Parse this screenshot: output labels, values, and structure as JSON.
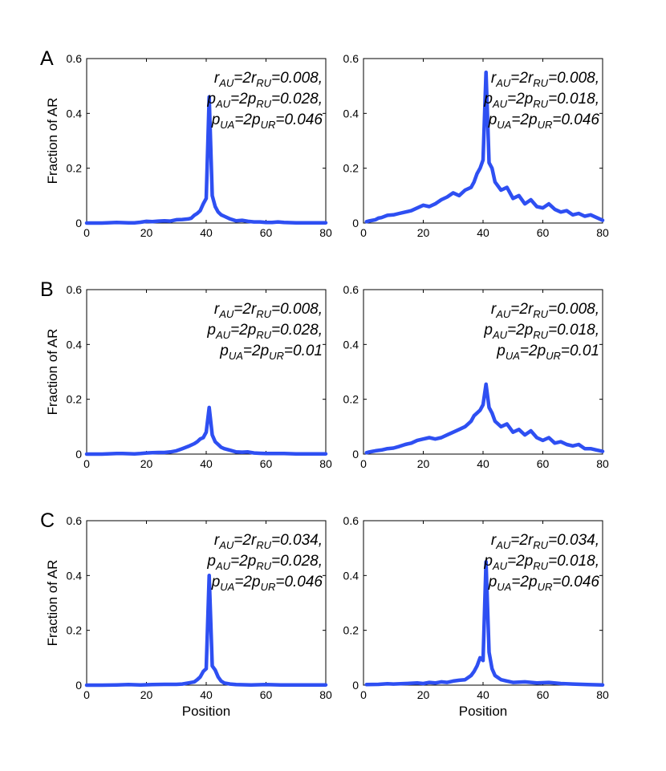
{
  "chart_data": [
    {
      "id": "A-left",
      "type": "line",
      "panel_label": "A",
      "ylabel": "Fraction of AR",
      "xlabel": "",
      "xlim": [
        0,
        80
      ],
      "ylim": [
        0,
        0.6
      ],
      "xticks": [
        0,
        20,
        40,
        60,
        80
      ],
      "yticks": [
        0,
        0.2,
        0.4,
        0.6
      ],
      "annotation": [
        [
          [
            "r",
            ""
          ],
          [
            "AU",
            "sub"
          ],
          [
            "=2r",
            ""
          ],
          [
            "RU",
            "sub"
          ],
          [
            "=0.008,",
            ""
          ]
        ],
        [
          [
            "p",
            ""
          ],
          [
            "AU",
            "sub"
          ],
          [
            "=2p",
            ""
          ],
          [
            "RU",
            "sub"
          ],
          [
            "=0.028,",
            ""
          ]
        ],
        [
          [
            "p",
            ""
          ],
          [
            "UA",
            "sub"
          ],
          [
            "=2p",
            ""
          ],
          [
            "UR",
            "sub"
          ],
          [
            "=0.046",
            ""
          ]
        ]
      ],
      "series": [
        {
          "name": "fraction",
          "x": [
            0,
            5,
            10,
            14,
            16,
            18,
            20,
            22,
            24,
            26,
            28,
            30,
            32,
            34,
            35,
            36,
            37,
            38,
            39,
            40,
            41,
            42,
            43,
            44,
            45,
            46,
            48,
            50,
            52,
            54,
            56,
            58,
            60,
            62,
            64,
            66,
            70,
            75,
            80
          ],
          "y": [
            0,
            0,
            0.002,
            0.001,
            0.001,
            0.003,
            0.006,
            0.005,
            0.007,
            0.008,
            0.007,
            0.012,
            0.013,
            0.015,
            0.018,
            0.028,
            0.035,
            0.045,
            0.07,
            0.09,
            0.46,
            0.1,
            0.06,
            0.04,
            0.03,
            0.025,
            0.015,
            0.008,
            0.01,
            0.006,
            0.004,
            0.004,
            0.002,
            0.002,
            0.004,
            0.002,
            0.001,
            0.001,
            0.001
          ]
        }
      ]
    },
    {
      "id": "A-right",
      "type": "line",
      "panel_label": "",
      "ylabel": "",
      "xlabel": "",
      "xlim": [
        0,
        80
      ],
      "ylim": [
        0,
        0.6
      ],
      "xticks": [
        0,
        20,
        40,
        60,
        80
      ],
      "yticks": [
        0,
        0.2,
        0.4,
        0.6
      ],
      "annotation": [
        [
          [
            "r",
            ""
          ],
          [
            "AU",
            "sub"
          ],
          [
            "=2r",
            ""
          ],
          [
            "RU",
            "sub"
          ],
          [
            "=0.008,",
            ""
          ]
        ],
        [
          [
            "p",
            ""
          ],
          [
            "AU",
            "sub"
          ],
          [
            "=2p",
            ""
          ],
          [
            "RU",
            "sub"
          ],
          [
            "=0.018,",
            ""
          ]
        ],
        [
          [
            "p",
            ""
          ],
          [
            "UA",
            "sub"
          ],
          [
            "=2p",
            ""
          ],
          [
            "UR",
            "sub"
          ],
          [
            "=0.046",
            ""
          ]
        ]
      ],
      "series": [
        {
          "name": "fraction",
          "x": [
            1,
            2,
            3,
            4,
            5,
            6,
            8,
            10,
            12,
            14,
            16,
            18,
            20,
            22,
            24,
            26,
            28,
            30,
            32,
            34,
            36,
            37,
            38,
            39,
            40,
            41,
            42,
            43,
            44,
            46,
            48,
            50,
            52,
            54,
            56,
            58,
            60,
            62,
            64,
            66,
            68,
            70,
            72,
            74,
            76,
            78,
            80
          ],
          "y": [
            0.005,
            0.008,
            0.01,
            0.012,
            0.018,
            0.02,
            0.028,
            0.03,
            0.035,
            0.04,
            0.045,
            0.055,
            0.065,
            0.06,
            0.07,
            0.085,
            0.095,
            0.11,
            0.1,
            0.12,
            0.13,
            0.15,
            0.18,
            0.2,
            0.23,
            0.55,
            0.22,
            0.2,
            0.15,
            0.12,
            0.13,
            0.09,
            0.1,
            0.07,
            0.085,
            0.06,
            0.055,
            0.07,
            0.05,
            0.04,
            0.045,
            0.03,
            0.035,
            0.025,
            0.03,
            0.02,
            0.01
          ]
        }
      ]
    },
    {
      "id": "B-left",
      "type": "line",
      "panel_label": "B",
      "ylabel": "Fraction of AR",
      "xlabel": "",
      "xlim": [
        0,
        80
      ],
      "ylim": [
        0,
        0.6
      ],
      "xticks": [
        0,
        20,
        40,
        60,
        80
      ],
      "yticks": [
        0,
        0.2,
        0.4,
        0.6
      ],
      "annotation": [
        [
          [
            "r",
            ""
          ],
          [
            "AU",
            "sub"
          ],
          [
            "=2r",
            ""
          ],
          [
            "RU",
            "sub"
          ],
          [
            "=0.008,",
            ""
          ]
        ],
        [
          [
            "p",
            ""
          ],
          [
            "AU",
            "sub"
          ],
          [
            "=2p",
            ""
          ],
          [
            "RU",
            "sub"
          ],
          [
            "=0.028,",
            ""
          ]
        ],
        [
          [
            "p",
            ""
          ],
          [
            "UA",
            "sub"
          ],
          [
            "=2p",
            ""
          ],
          [
            "UR",
            "sub"
          ],
          [
            "=0.01",
            ""
          ]
        ]
      ],
      "series": [
        {
          "name": "fraction",
          "x": [
            0,
            5,
            10,
            12,
            16,
            18,
            20,
            22,
            24,
            26,
            28,
            30,
            32,
            34,
            36,
            37,
            38,
            39,
            40,
            41,
            42,
            43,
            44,
            45,
            46,
            48,
            50,
            52,
            54,
            56,
            58,
            60,
            62,
            66,
            70,
            75,
            80
          ],
          "y": [
            0,
            0,
            0.002,
            0.002,
            0.001,
            0.002,
            0.004,
            0.005,
            0.006,
            0.006,
            0.008,
            0.012,
            0.02,
            0.028,
            0.038,
            0.045,
            0.055,
            0.06,
            0.08,
            0.17,
            0.07,
            0.045,
            0.035,
            0.025,
            0.02,
            0.014,
            0.008,
            0.007,
            0.008,
            0.004,
            0.003,
            0.002,
            0.002,
            0.002,
            0.001,
            0.001,
            0.001
          ]
        }
      ]
    },
    {
      "id": "B-right",
      "type": "line",
      "panel_label": "",
      "ylabel": "",
      "xlabel": "",
      "xlim": [
        0,
        80
      ],
      "ylim": [
        0,
        0.6
      ],
      "xticks": [
        0,
        20,
        40,
        60,
        80
      ],
      "yticks": [
        0,
        0.2,
        0.4,
        0.6
      ],
      "annotation": [
        [
          [
            "r",
            ""
          ],
          [
            "AU",
            "sub"
          ],
          [
            "=2r",
            ""
          ],
          [
            "RU",
            "sub"
          ],
          [
            "=0.008,",
            ""
          ]
        ],
        [
          [
            "p",
            ""
          ],
          [
            "AU",
            "sub"
          ],
          [
            "=2p",
            ""
          ],
          [
            "RU",
            "sub"
          ],
          [
            "=0.018,",
            ""
          ]
        ],
        [
          [
            "p",
            ""
          ],
          [
            "UA",
            "sub"
          ],
          [
            "=2p",
            ""
          ],
          [
            "UR",
            "sub"
          ],
          [
            "=0.01",
            ""
          ]
        ]
      ],
      "series": [
        {
          "name": "fraction",
          "x": [
            1,
            2,
            3,
            4,
            6,
            8,
            10,
            12,
            14,
            16,
            18,
            20,
            22,
            24,
            26,
            28,
            30,
            32,
            34,
            35,
            36,
            37,
            38,
            39,
            40,
            41,
            42,
            43,
            44,
            46,
            48,
            50,
            52,
            54,
            56,
            58,
            60,
            62,
            64,
            66,
            68,
            70,
            72,
            74,
            76,
            78,
            80
          ],
          "y": [
            0.005,
            0.008,
            0.01,
            0.012,
            0.015,
            0.02,
            0.022,
            0.028,
            0.035,
            0.04,
            0.05,
            0.055,
            0.06,
            0.055,
            0.06,
            0.07,
            0.08,
            0.09,
            0.1,
            0.11,
            0.12,
            0.14,
            0.15,
            0.16,
            0.18,
            0.255,
            0.17,
            0.15,
            0.12,
            0.1,
            0.11,
            0.08,
            0.09,
            0.07,
            0.085,
            0.06,
            0.05,
            0.06,
            0.04,
            0.045,
            0.035,
            0.03,
            0.035,
            0.02,
            0.02,
            0.015,
            0.01
          ]
        }
      ]
    },
    {
      "id": "C-left",
      "type": "line",
      "panel_label": "C",
      "ylabel": "Fraction of AR",
      "xlabel": "Position",
      "xlim": [
        0,
        80
      ],
      "ylim": [
        0,
        0.6
      ],
      "xticks": [
        0,
        20,
        40,
        60,
        80
      ],
      "yticks": [
        0,
        0.2,
        0.4,
        0.6
      ],
      "annotation": [
        [
          [
            "r",
            ""
          ],
          [
            "AU",
            "sub"
          ],
          [
            "=2r",
            ""
          ],
          [
            "RU",
            "sub"
          ],
          [
            "=0.034,",
            ""
          ]
        ],
        [
          [
            "p",
            ""
          ],
          [
            "AU",
            "sub"
          ],
          [
            "=2p",
            ""
          ],
          [
            "RU",
            "sub"
          ],
          [
            "=0.028,",
            ""
          ]
        ],
        [
          [
            "p",
            ""
          ],
          [
            "UA",
            "sub"
          ],
          [
            "=2p",
            ""
          ],
          [
            "UR",
            "sub"
          ],
          [
            "=0.046",
            ""
          ]
        ]
      ],
      "series": [
        {
          "name": "fraction",
          "x": [
            0,
            5,
            10,
            14,
            18,
            22,
            26,
            30,
            32,
            34,
            36,
            37,
            38,
            39,
            40,
            41,
            42,
            43,
            44,
            45,
            46,
            48,
            50,
            55,
            60,
            65,
            70,
            75,
            80
          ],
          "y": [
            0,
            0,
            0.001,
            0.002,
            0.001,
            0.002,
            0.003,
            0.003,
            0.004,
            0.008,
            0.012,
            0.02,
            0.03,
            0.05,
            0.06,
            0.4,
            0.07,
            0.055,
            0.03,
            0.015,
            0.008,
            0.004,
            0.002,
            0.001,
            0.002,
            0.001,
            0.001,
            0.001,
            0.001
          ]
        }
      ]
    },
    {
      "id": "C-right",
      "type": "line",
      "panel_label": "",
      "ylabel": "",
      "xlabel": "Position",
      "xlim": [
        0,
        80
      ],
      "ylim": [
        0,
        0.6
      ],
      "xticks": [
        0,
        20,
        40,
        60,
        80
      ],
      "yticks": [
        0,
        0.2,
        0.4,
        0.6
      ],
      "annotation": [
        [
          [
            "r",
            ""
          ],
          [
            "AU",
            "sub"
          ],
          [
            "=2r",
            ""
          ],
          [
            "RU",
            "sub"
          ],
          [
            "=0.034,",
            ""
          ]
        ],
        [
          [
            "p",
            ""
          ],
          [
            "AU",
            "sub"
          ],
          [
            "=2p",
            ""
          ],
          [
            "RU",
            "sub"
          ],
          [
            "=0.018,",
            ""
          ]
        ],
        [
          [
            "p",
            ""
          ],
          [
            "UA",
            "sub"
          ],
          [
            "=2p",
            ""
          ],
          [
            "UR",
            "sub"
          ],
          [
            "=0.046",
            ""
          ]
        ]
      ],
      "series": [
        {
          "name": "fraction",
          "x": [
            1,
            5,
            8,
            10,
            14,
            18,
            20,
            22,
            24,
            26,
            28,
            30,
            32,
            34,
            36,
            37,
            38,
            39,
            40,
            41,
            42,
            43,
            44,
            46,
            48,
            50,
            54,
            58,
            62,
            66,
            70,
            75,
            80
          ],
          "y": [
            0.002,
            0.003,
            0.005,
            0.004,
            0.006,
            0.008,
            0.006,
            0.01,
            0.008,
            0.012,
            0.01,
            0.015,
            0.018,
            0.02,
            0.035,
            0.05,
            0.07,
            0.1,
            0.09,
            0.45,
            0.12,
            0.06,
            0.035,
            0.02,
            0.015,
            0.01,
            0.012,
            0.008,
            0.01,
            0.006,
            0.004,
            0.002,
            0.001
          ]
        }
      ]
    }
  ]
}
